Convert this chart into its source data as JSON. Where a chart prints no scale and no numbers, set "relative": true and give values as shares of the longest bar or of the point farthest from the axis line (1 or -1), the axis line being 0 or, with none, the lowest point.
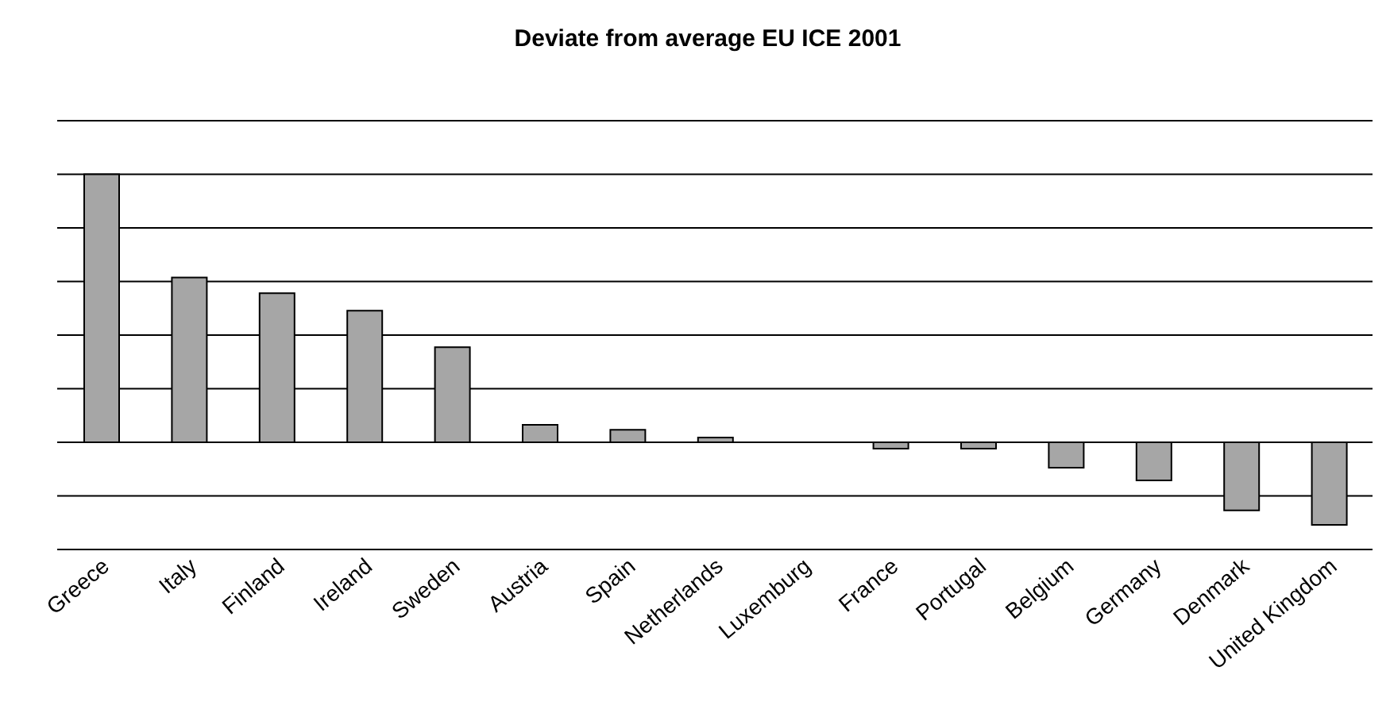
{
  "chart_data": {
    "type": "bar",
    "title": "Deviate from average EU ICE 2001",
    "categories": [
      "Greece",
      "Italy",
      "Finland",
      "Ireland",
      "Sweden",
      "Austria",
      "Spain",
      "Netherlands",
      "Luxemburg",
      "France",
      "Portugal",
      "Belgium",
      "Germany",
      "Denmark",
      "United Kingdom"
    ],
    "values": [
      1,
      0.615,
      0.556,
      0.491,
      0.355,
      0.065,
      0.047,
      0.018,
      0,
      -0.024,
      -0.024,
      -0.095,
      -0.142,
      -0.254,
      -0.308
    ],
    "color": "#a6a6a6",
    "relative": true,
    "grid": "y"
  }
}
